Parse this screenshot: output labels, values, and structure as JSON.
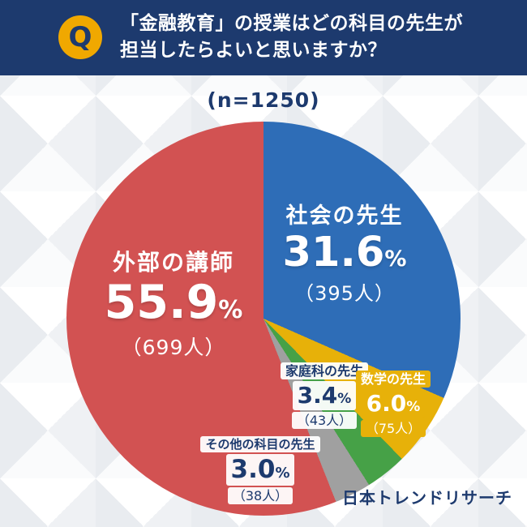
{
  "header": {
    "badge": "Q",
    "title_line1": "「金融教育」の授業はどの科目の先生が",
    "title_line2": "担当したらよいと思いますか？"
  },
  "sample_size_label": "(n=1250)",
  "brand_logo": "日本トレンドリサーチ",
  "colors": {
    "navy": "#1d3a6e",
    "gold": "#f0a800",
    "yellow": "#e7b109",
    "pattern_a": "#eff1f4",
    "pattern_b": "#fafbfc",
    "pattern_c": "#e9ecf0",
    "pattern_d": "#ffffff"
  },
  "chart_data": {
    "type": "pie",
    "title": "「金融教育」の授業はどの科目の先生が担当したらよいと思いますか？",
    "sample_size": 1250,
    "start_angle_deg": 0,
    "direction": "clockwise",
    "legend_position": "on-slice",
    "percent_sign": "%",
    "slices": [
      {
        "label": "社会の先生",
        "percent": 31.6,
        "percent_text": "31.6",
        "count": 395,
        "count_label": "（395人）",
        "color": "#2e6db7",
        "text_color": "#ffffff"
      },
      {
        "label": "数学の先生",
        "percent": 6.0,
        "percent_text": "6.0",
        "count": 75,
        "count_label": "（75人）",
        "color": "#e7b109",
        "text_color": "#ffffff"
      },
      {
        "label": "家庭科の先生",
        "percent": 3.4,
        "percent_text": "3.4",
        "count": 43,
        "count_label": "（43人）",
        "color": "#46a147",
        "text_color": "#1d3a6e"
      },
      {
        "label": "その他の科目の先生",
        "percent": 3.0,
        "percent_text": "3.0",
        "count": 38,
        "count_label": "（38人）",
        "color": "#a0a0a0",
        "text_color": "#1d3a6e"
      },
      {
        "label": "外部の講師",
        "percent": 55.9,
        "percent_text": "55.9",
        "count": 699,
        "count_label": "（699人）",
        "color": "#d25252",
        "text_color": "#ffffff"
      }
    ]
  }
}
